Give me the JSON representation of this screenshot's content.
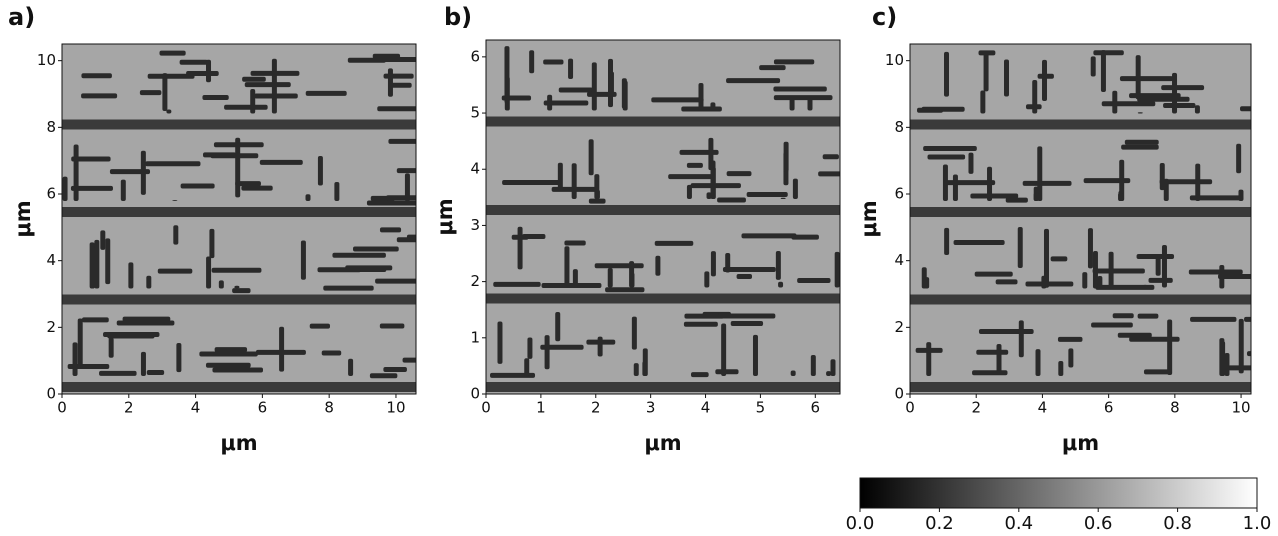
{
  "chart_data": [
    {
      "type": "image",
      "label": "a)",
      "xlabel": "μm",
      "ylabel": "μm",
      "xlim": [
        0,
        10.6
      ],
      "ylim": [
        0,
        10.5
      ],
      "xticks": [
        0,
        2,
        4,
        6,
        8,
        10
      ],
      "yticks": [
        0,
        2,
        4,
        6,
        8,
        10
      ]
    },
    {
      "type": "image",
      "label": "b)",
      "xlabel": "μm",
      "ylabel": "μm",
      "xlim": [
        0,
        6.45
      ],
      "ylim": [
        0,
        6.3
      ],
      "xticks": [
        0,
        1,
        2,
        3,
        4,
        5,
        6
      ],
      "yticks": [
        0,
        1,
        2,
        3,
        4,
        5,
        6
      ]
    },
    {
      "type": "image",
      "label": "c)",
      "xlabel": "μm",
      "ylabel": "μm",
      "xlim": [
        0,
        10.3
      ],
      "ylim": [
        0,
        10.5
      ],
      "xticks": [
        0,
        2,
        4,
        6,
        8,
        10
      ],
      "yticks": [
        0,
        2,
        4,
        6,
        8,
        10
      ]
    },
    {
      "type": "colorbar",
      "clim": [
        0,
        1
      ],
      "cmap": [
        "#000000",
        "#ffffff"
      ],
      "ticks": [
        {
          "value": 0,
          "label": "0.0"
        },
        0.2,
        0.4,
        0.6,
        0.8,
        {
          "value": 1,
          "label": "1.0"
        }
      ]
    }
  ]
}
